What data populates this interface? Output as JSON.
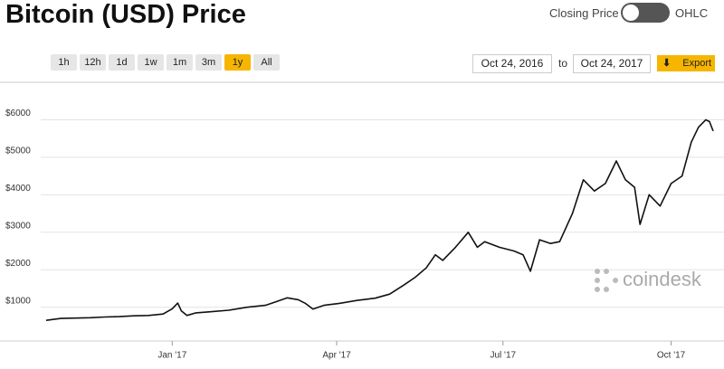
{
  "header": {
    "toggle_left": "Closing Price",
    "toggle_right": "OHLC"
  },
  "ranges": [
    "1h",
    "12h",
    "1d",
    "1w",
    "1m",
    "3m",
    "1y",
    "All"
  ],
  "date_from": "Oct 24, 2016",
  "date_to_label": "to",
  "date_to": "Oct 24, 2017",
  "export": "Export",
  "watermark": "coindesk",
  "chart_data": {
    "type": "line",
    "title": "Bitcoin (USD) Price",
    "color": "#111111",
    "grid": true,
    "x": [
      0,
      8,
      16,
      24,
      32,
      40,
      48,
      56,
      64,
      69,
      72,
      74,
      77,
      82,
      90,
      100,
      110,
      120,
      126,
      132,
      138,
      142,
      146,
      152,
      160,
      170,
      180,
      188,
      196,
      202,
      208,
      213,
      217,
      224,
      231,
      236,
      240,
      248,
      256,
      261,
      265,
      270,
      276,
      281,
      288,
      294,
      300,
      306,
      312,
      317,
      322,
      325,
      330,
      336,
      342,
      348,
      353,
      357,
      361,
      363,
      365
    ],
    "values": [
      650,
      700,
      710,
      720,
      740,
      750,
      770,
      780,
      820,
      960,
      1110,
      900,
      780,
      850,
      880,
      920,
      1000,
      1050,
      1150,
      1250,
      1200,
      1100,
      950,
      1050,
      1100,
      1180,
      1240,
      1350,
      1600,
      1800,
      2050,
      2400,
      2250,
      2600,
      3000,
      2600,
      2750,
      2600,
      2500,
      2400,
      1960,
      2800,
      2700,
      2750,
      3500,
      4400,
      4100,
      4300,
      4900,
      4400,
      4200,
      3210,
      4000,
      3700,
      4300,
      4500,
      5400,
      5800,
      6000,
      5950,
      5700
    ],
    "xlim": [
      0,
      365
    ],
    "ylim": [
      100,
      7000
    ],
    "xticks": [
      {
        "value": 69,
        "label": "Jan '17"
      },
      {
        "value": 159,
        "label": "Apr '17"
      },
      {
        "value": 250,
        "label": "Jul '17"
      },
      {
        "value": 342,
        "label": "Oct '17"
      }
    ],
    "yticks": [
      {
        "value": 1000,
        "label": "$1000"
      },
      {
        "value": 2000,
        "label": "$2000"
      },
      {
        "value": 3000,
        "label": "$3000"
      },
      {
        "value": 4000,
        "label": "$4000"
      },
      {
        "value": 5000,
        "label": "$5000"
      },
      {
        "value": 6000,
        "label": "$6000"
      }
    ]
  }
}
